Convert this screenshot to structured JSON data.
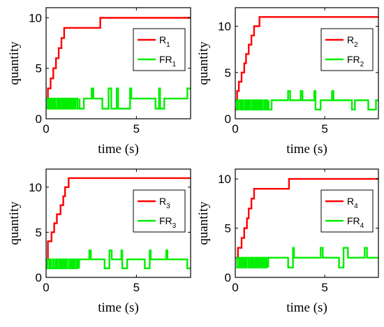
{
  "chart_data": [
    {
      "type": "line",
      "xlabel": "time (s)",
      "ylabel": "quantity",
      "xlim": [
        0,
        8
      ],
      "ylim": [
        0,
        11
      ],
      "xticks": [
        0,
        5
      ],
      "yticks": [
        0,
        5,
        10
      ],
      "legend_position": "top-right",
      "series": [
        {
          "name": "R",
          "sub": "1",
          "color": "#ff0000",
          "x": [
            0,
            0.1,
            0.1,
            0.25,
            0.25,
            0.4,
            0.4,
            0.55,
            0.55,
            0.7,
            0.7,
            0.85,
            0.85,
            1.0,
            1.0,
            1.15,
            1.15,
            3.0,
            3.0,
            8.0
          ],
          "y": [
            2,
            2,
            3,
            3,
            4,
            4,
            5,
            5,
            6,
            6,
            7,
            7,
            8,
            8,
            9,
            9,
            9,
            9,
            10,
            10
          ]
        },
        {
          "name": "FR",
          "sub": "1",
          "color": "#00ee00",
          "pattern": "A"
        }
      ]
    },
    {
      "type": "line",
      "xlabel": "time (s)",
      "ylabel": "quantity",
      "xlim": [
        0,
        8
      ],
      "ylim": [
        0,
        12
      ],
      "xticks": [
        0,
        5
      ],
      "yticks": [
        0,
        5,
        10
      ],
      "legend_position": "top-right",
      "series": [
        {
          "name": "R",
          "sub": "2",
          "color": "#ff0000",
          "x": [
            0,
            0.1,
            0.1,
            0.2,
            0.2,
            0.35,
            0.35,
            0.5,
            0.5,
            0.6,
            0.6,
            0.75,
            0.75,
            0.9,
            0.9,
            1.05,
            1.05,
            1.2,
            1.2,
            1.35,
            1.35,
            8.0
          ],
          "y": [
            1,
            1,
            3,
            3,
            4,
            4,
            5,
            5,
            6,
            6,
            7,
            7,
            8,
            8,
            9,
            9,
            10,
            10,
            10,
            10,
            11,
            11
          ]
        },
        {
          "name": "FR",
          "sub": "2",
          "color": "#00ee00",
          "pattern": "B"
        }
      ]
    },
    {
      "type": "line",
      "xlabel": "time (s)",
      "ylabel": "quantity",
      "xlim": [
        0,
        8
      ],
      "ylim": [
        0,
        12
      ],
      "xticks": [
        0,
        5
      ],
      "yticks": [
        0,
        5,
        10
      ],
      "legend_position": "top-right",
      "series": [
        {
          "name": "R",
          "sub": "3",
          "color": "#ff0000",
          "x": [
            0,
            0.1,
            0.1,
            0.3,
            0.3,
            0.45,
            0.45,
            0.6,
            0.6,
            0.8,
            0.8,
            0.95,
            0.95,
            1.05,
            1.05,
            1.15,
            1.15,
            1.25,
            1.25,
            1.4,
            1.4,
            8.0
          ],
          "y": [
            2,
            2,
            4,
            4,
            5,
            5,
            6,
            6,
            7,
            7,
            8,
            8,
            9,
            9,
            10,
            10,
            10,
            10,
            11,
            11,
            11,
            11
          ]
        },
        {
          "name": "FR",
          "sub": "3",
          "color": "#00ee00",
          "pattern": "C"
        }
      ]
    },
    {
      "type": "line",
      "xlabel": "time (s)",
      "ylabel": "quantity",
      "xlim": [
        0,
        8
      ],
      "ylim": [
        0,
        11
      ],
      "xticks": [
        0,
        5
      ],
      "yticks": [
        0,
        5,
        10
      ],
      "legend_position": "top-right",
      "series": [
        {
          "name": "R",
          "sub": "4",
          "color": "#ff0000",
          "x": [
            0,
            0.15,
            0.15,
            0.35,
            0.35,
            0.5,
            0.5,
            0.65,
            0.65,
            0.75,
            0.75,
            0.9,
            0.9,
            1.05,
            1.05,
            1.3,
            1.3,
            3.0,
            3.0,
            8.0
          ],
          "y": [
            2,
            2,
            3,
            3,
            4,
            4,
            5,
            5,
            6,
            6,
            7,
            7,
            8,
            8,
            9,
            9,
            9,
            9,
            10,
            10
          ]
        },
        {
          "name": "FR",
          "sub": "4",
          "color": "#00ee00",
          "pattern": "D"
        }
      ]
    }
  ]
}
